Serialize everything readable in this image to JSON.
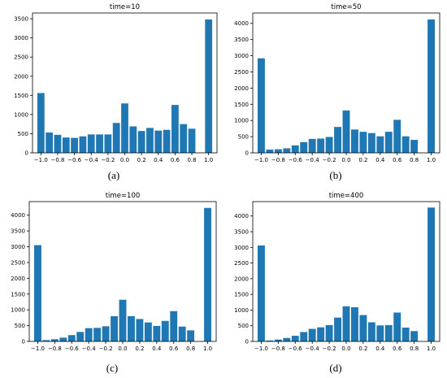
{
  "figure": {
    "panels": [
      {
        "caption": "(a)"
      },
      {
        "caption": "(b)"
      },
      {
        "caption": "(c)"
      },
      {
        "caption": "(d)"
      }
    ]
  },
  "chart_data": [
    {
      "type": "bar",
      "title": "time=10",
      "bar_color": "#1f77b4",
      "x": [
        -1.0,
        -0.9,
        -0.8,
        -0.7,
        -0.6,
        -0.5,
        -0.4,
        -0.3,
        -0.2,
        -0.1,
        0.0,
        0.1,
        0.2,
        0.3,
        0.4,
        0.5,
        0.6,
        0.7,
        0.8,
        0.9,
        1.0
      ],
      "values": [
        1560,
        530,
        470,
        400,
        390,
        430,
        480,
        480,
        480,
        780,
        1290,
        690,
        570,
        650,
        580,
        600,
        1250,
        750,
        630,
        0,
        3480
      ],
      "xlim": [
        -1.1,
        1.1
      ],
      "ylim": [
        0,
        3650
      ],
      "xticks": [
        "−1.0",
        "−0.8",
        "−0.6",
        "−0.4",
        "−0.2",
        "0.0",
        "0.2",
        "0.4",
        "0.6",
        "0.8",
        "1.0"
      ],
      "xtick_values": [
        -1.0,
        -0.8,
        -0.6,
        -0.4,
        -0.2,
        0.0,
        0.2,
        0.4,
        0.6,
        0.8,
        1.0
      ],
      "yticks": [
        "0",
        "500",
        "1000",
        "1500",
        "2000",
        "2500",
        "3000",
        "3500"
      ],
      "ytick_values": [
        0,
        500,
        1000,
        1500,
        2000,
        2500,
        3000,
        3500
      ]
    },
    {
      "type": "bar",
      "title": "time=50",
      "bar_color": "#1f77b4",
      "x": [
        -1.0,
        -0.9,
        -0.8,
        -0.7,
        -0.6,
        -0.5,
        -0.4,
        -0.3,
        -0.2,
        -0.1,
        0.0,
        0.1,
        0.2,
        0.3,
        0.4,
        0.5,
        0.6,
        0.7,
        0.8,
        0.9,
        1.0
      ],
      "values": [
        2920,
        100,
        110,
        140,
        230,
        330,
        430,
        440,
        490,
        800,
        1310,
        720,
        650,
        610,
        510,
        650,
        1020,
        510,
        400,
        0,
        4120
      ],
      "xlim": [
        -1.1,
        1.1
      ],
      "ylim": [
        0,
        4320
      ],
      "xticks": [
        "−1.0",
        "−0.8",
        "−0.6",
        "−0.4",
        "−0.2",
        "0.0",
        "0.2",
        "0.4",
        "0.6",
        "0.8",
        "1.0"
      ],
      "xtick_values": [
        -1.0,
        -0.8,
        -0.6,
        -0.4,
        -0.2,
        0.0,
        0.2,
        0.4,
        0.6,
        0.8,
        1.0
      ],
      "yticks": [
        "0",
        "500",
        "1000",
        "1500",
        "2000",
        "2500",
        "3000",
        "3500",
        "4000"
      ],
      "ytick_values": [
        0,
        500,
        1000,
        1500,
        2000,
        2500,
        3000,
        3500,
        4000
      ]
    },
    {
      "type": "bar",
      "title": "time=100",
      "bar_color": "#1f77b4",
      "x": [
        -1.0,
        -0.9,
        -0.8,
        -0.7,
        -0.6,
        -0.5,
        -0.4,
        -0.3,
        -0.2,
        -0.1,
        0.0,
        0.1,
        0.2,
        0.3,
        0.4,
        0.5,
        0.6,
        0.7,
        0.8,
        0.9,
        1.0
      ],
      "values": [
        3050,
        40,
        70,
        120,
        200,
        300,
        420,
        430,
        480,
        800,
        1320,
        800,
        710,
        600,
        490,
        650,
        960,
        470,
        350,
        0,
        4230
      ],
      "xlim": [
        -1.1,
        1.1
      ],
      "ylim": [
        0,
        4430
      ],
      "xticks": [
        "−1.0",
        "−0.8",
        "−0.6",
        "−0.4",
        "−0.2",
        "0.0",
        "0.2",
        "0.4",
        "0.6",
        "0.8",
        "1.0"
      ],
      "xtick_values": [
        -1.0,
        -0.8,
        -0.6,
        -0.4,
        -0.2,
        0.0,
        0.2,
        0.4,
        0.6,
        0.8,
        1.0
      ],
      "yticks": [
        "0",
        "500",
        "1000",
        "1500",
        "2000",
        "2500",
        "3000",
        "3500",
        "4000"
      ],
      "ytick_values": [
        0,
        500,
        1000,
        1500,
        2000,
        2500,
        3000,
        3500,
        4000
      ]
    },
    {
      "type": "bar",
      "title": "time=400",
      "bar_color": "#1f77b4",
      "x": [
        -1.0,
        -0.9,
        -0.8,
        -0.7,
        -0.6,
        -0.5,
        -0.4,
        -0.3,
        -0.2,
        -0.1,
        0.0,
        0.1,
        0.2,
        0.3,
        0.4,
        0.5,
        0.6,
        0.7,
        0.8,
        0.9,
        1.0
      ],
      "values": [
        3060,
        30,
        60,
        110,
        180,
        300,
        400,
        450,
        520,
        760,
        1120,
        1090,
        840,
        610,
        510,
        520,
        920,
        440,
        330,
        0,
        4270
      ],
      "xlim": [
        -1.1,
        1.1
      ],
      "ylim": [
        0,
        4460
      ],
      "xticks": [
        "−1.0",
        "−0.8",
        "−0.6",
        "−0.4",
        "−0.2",
        "0.0",
        "0.2",
        "0.4",
        "0.6",
        "0.8",
        "1.0"
      ],
      "xtick_values": [
        -1.0,
        -0.8,
        -0.6,
        -0.4,
        -0.2,
        0.0,
        0.2,
        0.4,
        0.6,
        0.8,
        1.0
      ],
      "yticks": [
        "0",
        "500",
        "1000",
        "1500",
        "2000",
        "2500",
        "3000",
        "3500",
        "4000"
      ],
      "ytick_values": [
        0,
        500,
        1000,
        1500,
        2000,
        2500,
        3000,
        3500,
        4000
      ]
    }
  ]
}
